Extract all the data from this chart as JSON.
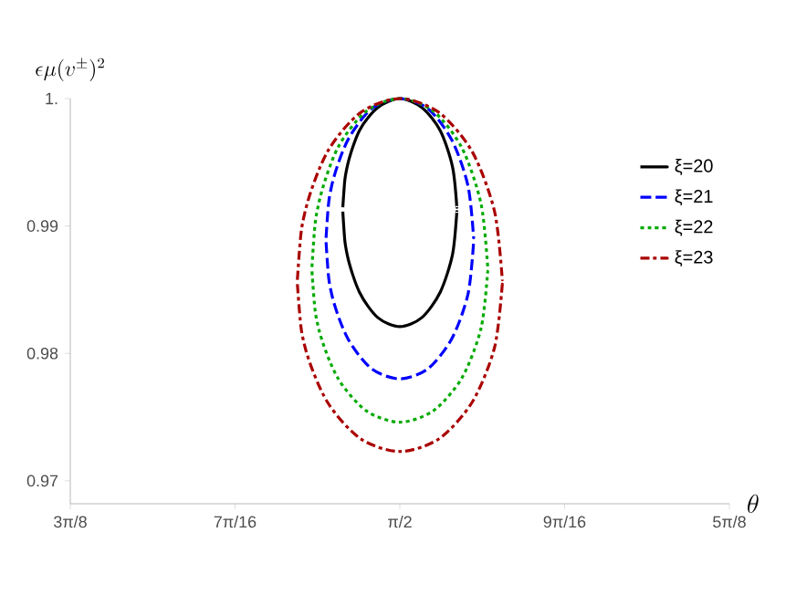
{
  "chart_data": {
    "type": "line",
    "xlabel": "\\theta",
    "ylabel": "\\epsilon\\mu(v^{\\pm})^2",
    "xlim": [
      1.1781,
      1.9635
    ],
    "ylim": [
      0.9682,
      1.0
    ],
    "xticks": [
      {
        "value": 1.1781,
        "label": "3π/8"
      },
      {
        "value": 1.3744,
        "label": "7π/16"
      },
      {
        "value": 1.5708,
        "label": "π/2"
      },
      {
        "value": 1.7671,
        "label": "9π/16"
      },
      {
        "value": 1.9635,
        "label": "5π/8"
      }
    ],
    "yticks": [
      0.97,
      0.98,
      0.99,
      {
        "value": 1,
        "label": "1."
      }
    ],
    "legend": "top right",
    "grid": false,
    "marker": "none",
    "series": [
      {
        "name": "ξ=20",
        "color": "#000000",
        "line_style": "solid",
        "x": [
          1.5027,
          1.5079,
          1.5227,
          1.5447,
          1.5708,
          1.5969,
          1.6189,
          1.6337,
          1.6389
        ],
        "values": [
          0.9913,
          0.9946,
          0.9975,
          0.9993,
          1.0,
          0.9993,
          0.9975,
          0.9946,
          0.9913
        ]
      },
      {
        "color": "#000000",
        "line_style": "solid",
        "x": [
          1.5027,
          1.5079,
          1.5227,
          1.5447,
          1.5708,
          1.5969,
          1.6189,
          1.6337,
          1.6389
        ],
        "values": [
          0.9913,
          0.9878,
          0.9848,
          0.9828,
          0.9821,
          0.9828,
          0.9848,
          0.9878,
          0.9913
        ]
      },
      {
        "name": "ξ=21",
        "color": "#0000ff",
        "line_style": "dashed",
        "x": [
          1.4827,
          1.4894,
          1.5085,
          1.5371,
          1.5708,
          1.6045,
          1.6331,
          1.6522,
          1.6589
        ],
        "values": [
          0.9889,
          0.9931,
          0.9967,
          0.9992,
          1.0,
          0.9992,
          0.9967,
          0.9931,
          0.9889
        ]
      },
      {
        "color": "#0000ff",
        "line_style": "dashed",
        "x": [
          1.4827,
          1.4894,
          1.5085,
          1.5371,
          1.5708,
          1.6045,
          1.6331,
          1.6522,
          1.6589
        ],
        "values": [
          0.9889,
          0.9847,
          0.9812,
          0.9788,
          0.978,
          0.9788,
          0.9812,
          0.9847,
          0.9889
        ]
      },
      {
        "name": "ξ=22",
        "color": "#00aa00",
        "line_style": "dotted",
        "x": [
          1.4659,
          1.4739,
          1.4966,
          1.5307,
          1.5708,
          1.6109,
          1.645,
          1.6677,
          1.6757
        ],
        "values": [
          0.9866,
          0.9917,
          0.9961,
          0.999,
          1.0,
          0.999,
          0.9961,
          0.9917,
          0.9866
        ]
      },
      {
        "color": "#00aa00",
        "line_style": "dotted",
        "x": [
          1.4659,
          1.4739,
          1.4966,
          1.5307,
          1.5708,
          1.6109,
          1.645,
          1.6677,
          1.6757
        ],
        "values": [
          0.9866,
          0.982,
          0.9781,
          0.9755,
          0.9746,
          0.9755,
          0.9781,
          0.982,
          0.9866
        ]
      },
      {
        "name": "ξ=23",
        "color": "#aa0000",
        "line_style": "dashdot",
        "x": [
          1.4485,
          1.4578,
          1.4843,
          1.524,
          1.5708,
          1.6176,
          1.6573,
          1.6838,
          1.6931
        ],
        "values": [
          0.9856,
          0.9911,
          0.9958,
          0.9989,
          1.0,
          0.9989,
          0.9958,
          0.9911,
          0.9856
        ]
      },
      {
        "color": "#aa0000",
        "line_style": "dashdot",
        "x": [
          1.4485,
          1.4578,
          1.4843,
          1.524,
          1.5708,
          1.6176,
          1.6573,
          1.6838,
          1.6931
        ],
        "values": [
          0.9856,
          0.9805,
          0.9762,
          0.9733,
          0.9723,
          0.9733,
          0.9762,
          0.9805,
          0.9856
        ]
      }
    ]
  }
}
